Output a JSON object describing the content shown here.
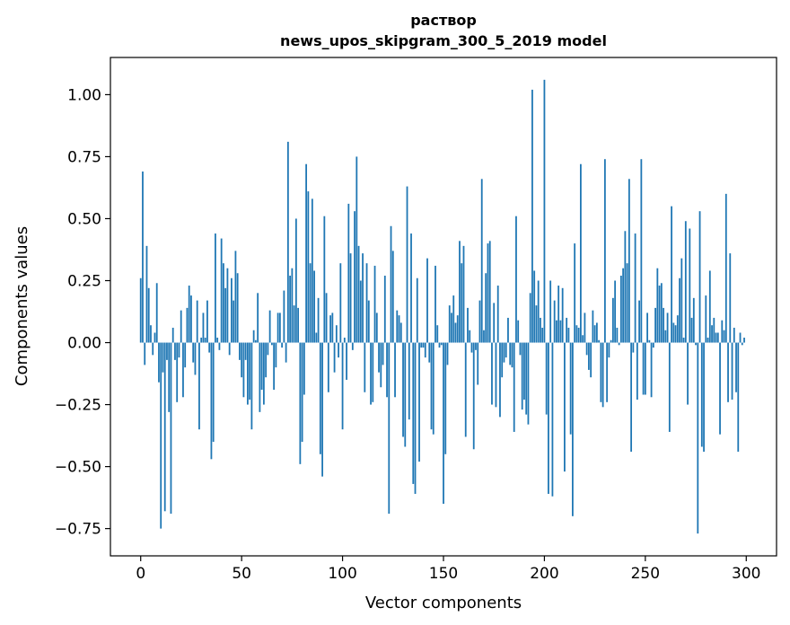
{
  "chart_data": {
    "type": "bar",
    "title": "раствор",
    "subtitle": "news_upos_skipgram_300_5_2019 model",
    "xlabel": "Vector components",
    "ylabel": "Components values",
    "xlim": [
      -15,
      315
    ],
    "ylim": [
      -0.86,
      1.15
    ],
    "xticks": [
      0,
      50,
      100,
      150,
      200,
      250,
      300
    ],
    "yticks": [
      -0.75,
      -0.5,
      -0.25,
      0.0,
      0.25,
      0.5,
      0.75,
      1.0
    ],
    "ytick_labels": [
      "−0.75",
      "−0.50",
      "−0.25",
      "0.00",
      "0.25",
      "0.50",
      "0.75",
      "1.00"
    ],
    "grid": false,
    "bar_color": "#1f77b4",
    "values": [
      0.26,
      0.69,
      -0.09,
      0.39,
      0.22,
      0.07,
      -0.05,
      0.04,
      0.24,
      -0.16,
      -0.75,
      -0.12,
      -0.68,
      -0.07,
      -0.28,
      -0.69,
      0.06,
      -0.07,
      -0.24,
      -0.06,
      0.13,
      -0.22,
      -0.1,
      0.14,
      0.23,
      0.19,
      -0.08,
      -0.13,
      0.17,
      -0.35,
      0.02,
      0.12,
      0.02,
      0.17,
      -0.04,
      -0.47,
      -0.4,
      0.44,
      0.02,
      -0.03,
      0.42,
      0.32,
      0.22,
      0.3,
      -0.05,
      0.26,
      0.17,
      0.37,
      0.28,
      -0.07,
      -0.14,
      -0.22,
      -0.07,
      -0.25,
      -0.23,
      -0.35,
      0.05,
      0.01,
      0.2,
      -0.28,
      -0.19,
      -0.25,
      -0.14,
      -0.05,
      0.13,
      -0.01,
      -0.19,
      -0.1,
      0.12,
      0.12,
      -0.02,
      0.21,
      -0.08,
      0.81,
      0.27,
      0.3,
      0.15,
      0.5,
      0.14,
      -0.49,
      -0.4,
      -0.21,
      0.72,
      0.61,
      0.32,
      0.58,
      0.29,
      0.04,
      0.18,
      -0.45,
      -0.54,
      0.51,
      0.2,
      -0.2,
      0.11,
      0.12,
      -0.12,
      0.07,
      -0.06,
      0.32,
      -0.35,
      0.02,
      -0.15,
      0.56,
      0.36,
      -0.03,
      0.53,
      0.75,
      0.39,
      0.25,
      0.36,
      -0.2,
      0.32,
      0.17,
      -0.25,
      -0.24,
      0.31,
      0.12,
      -0.12,
      -0.18,
      -0.09,
      0.27,
      -0.22,
      -0.69,
      0.47,
      0.37,
      -0.22,
      0.13,
      0.11,
      0.08,
      -0.38,
      -0.42,
      0.63,
      -0.31,
      0.44,
      -0.57,
      -0.61,
      0.26,
      -0.48,
      -0.02,
      -0.02,
      -0.06,
      0.34,
      -0.08,
      -0.35,
      -0.37,
      0.31,
      0.07,
      -0.02,
      -0.01,
      -0.65,
      -0.45,
      -0.09,
      0.15,
      0.12,
      0.19,
      0.08,
      0.11,
      0.41,
      0.32,
      0.39,
      -0.38,
      0.14,
      0.05,
      -0.04,
      -0.43,
      -0.03,
      -0.17,
      0.17,
      0.66,
      0.05,
      0.28,
      0.4,
      0.41,
      -0.25,
      0.16,
      -0.26,
      0.23,
      -0.3,
      -0.14,
      -0.08,
      -0.06,
      0.1,
      -0.09,
      -0.1,
      -0.36,
      0.51,
      0.09,
      -0.05,
      -0.27,
      -0.23,
      -0.29,
      -0.33,
      0.2,
      1.02,
      0.29,
      0.15,
      0.25,
      0.1,
      0.06,
      1.06,
      -0.29,
      -0.61,
      0.25,
      -0.62,
      0.17,
      0.09,
      0.23,
      0.09,
      0.22,
      -0.52,
      0.1,
      0.06,
      -0.37,
      -0.7,
      0.4,
      0.07,
      0.06,
      0.72,
      0.03,
      0.12,
      -0.05,
      -0.11,
      -0.14,
      0.13,
      0.07,
      0.08,
      0.01,
      -0.24,
      -0.26,
      0.74,
      -0.24,
      -0.06,
      0.01,
      0.18,
      0.25,
      0.06,
      -0.01,
      0.27,
      0.3,
      0.45,
      0.32,
      0.66,
      -0.44,
      -0.04,
      0.44,
      -0.23,
      0.17,
      0.74,
      -0.21,
      -0.21,
      0.12,
      0.01,
      -0.22,
      -0.02,
      0.14,
      0.3,
      0.23,
      0.24,
      0.14,
      0.05,
      0.12,
      -0.36,
      0.55,
      0.08,
      0.07,
      0.11,
      0.26,
      0.34,
      0.02,
      0.49,
      -0.25,
      0.46,
      0.1,
      0.18,
      -0.01,
      -0.77,
      0.53,
      -0.42,
      -0.44,
      0.19,
      0.02,
      0.29,
      0.07,
      0.1,
      0.04,
      0.04,
      -0.37,
      0.09,
      0.05,
      0.6,
      -0.24,
      0.36,
      -0.23,
      0.06,
      -0.2,
      -0.44,
      0.04,
      -0.01,
      0.02
    ]
  }
}
